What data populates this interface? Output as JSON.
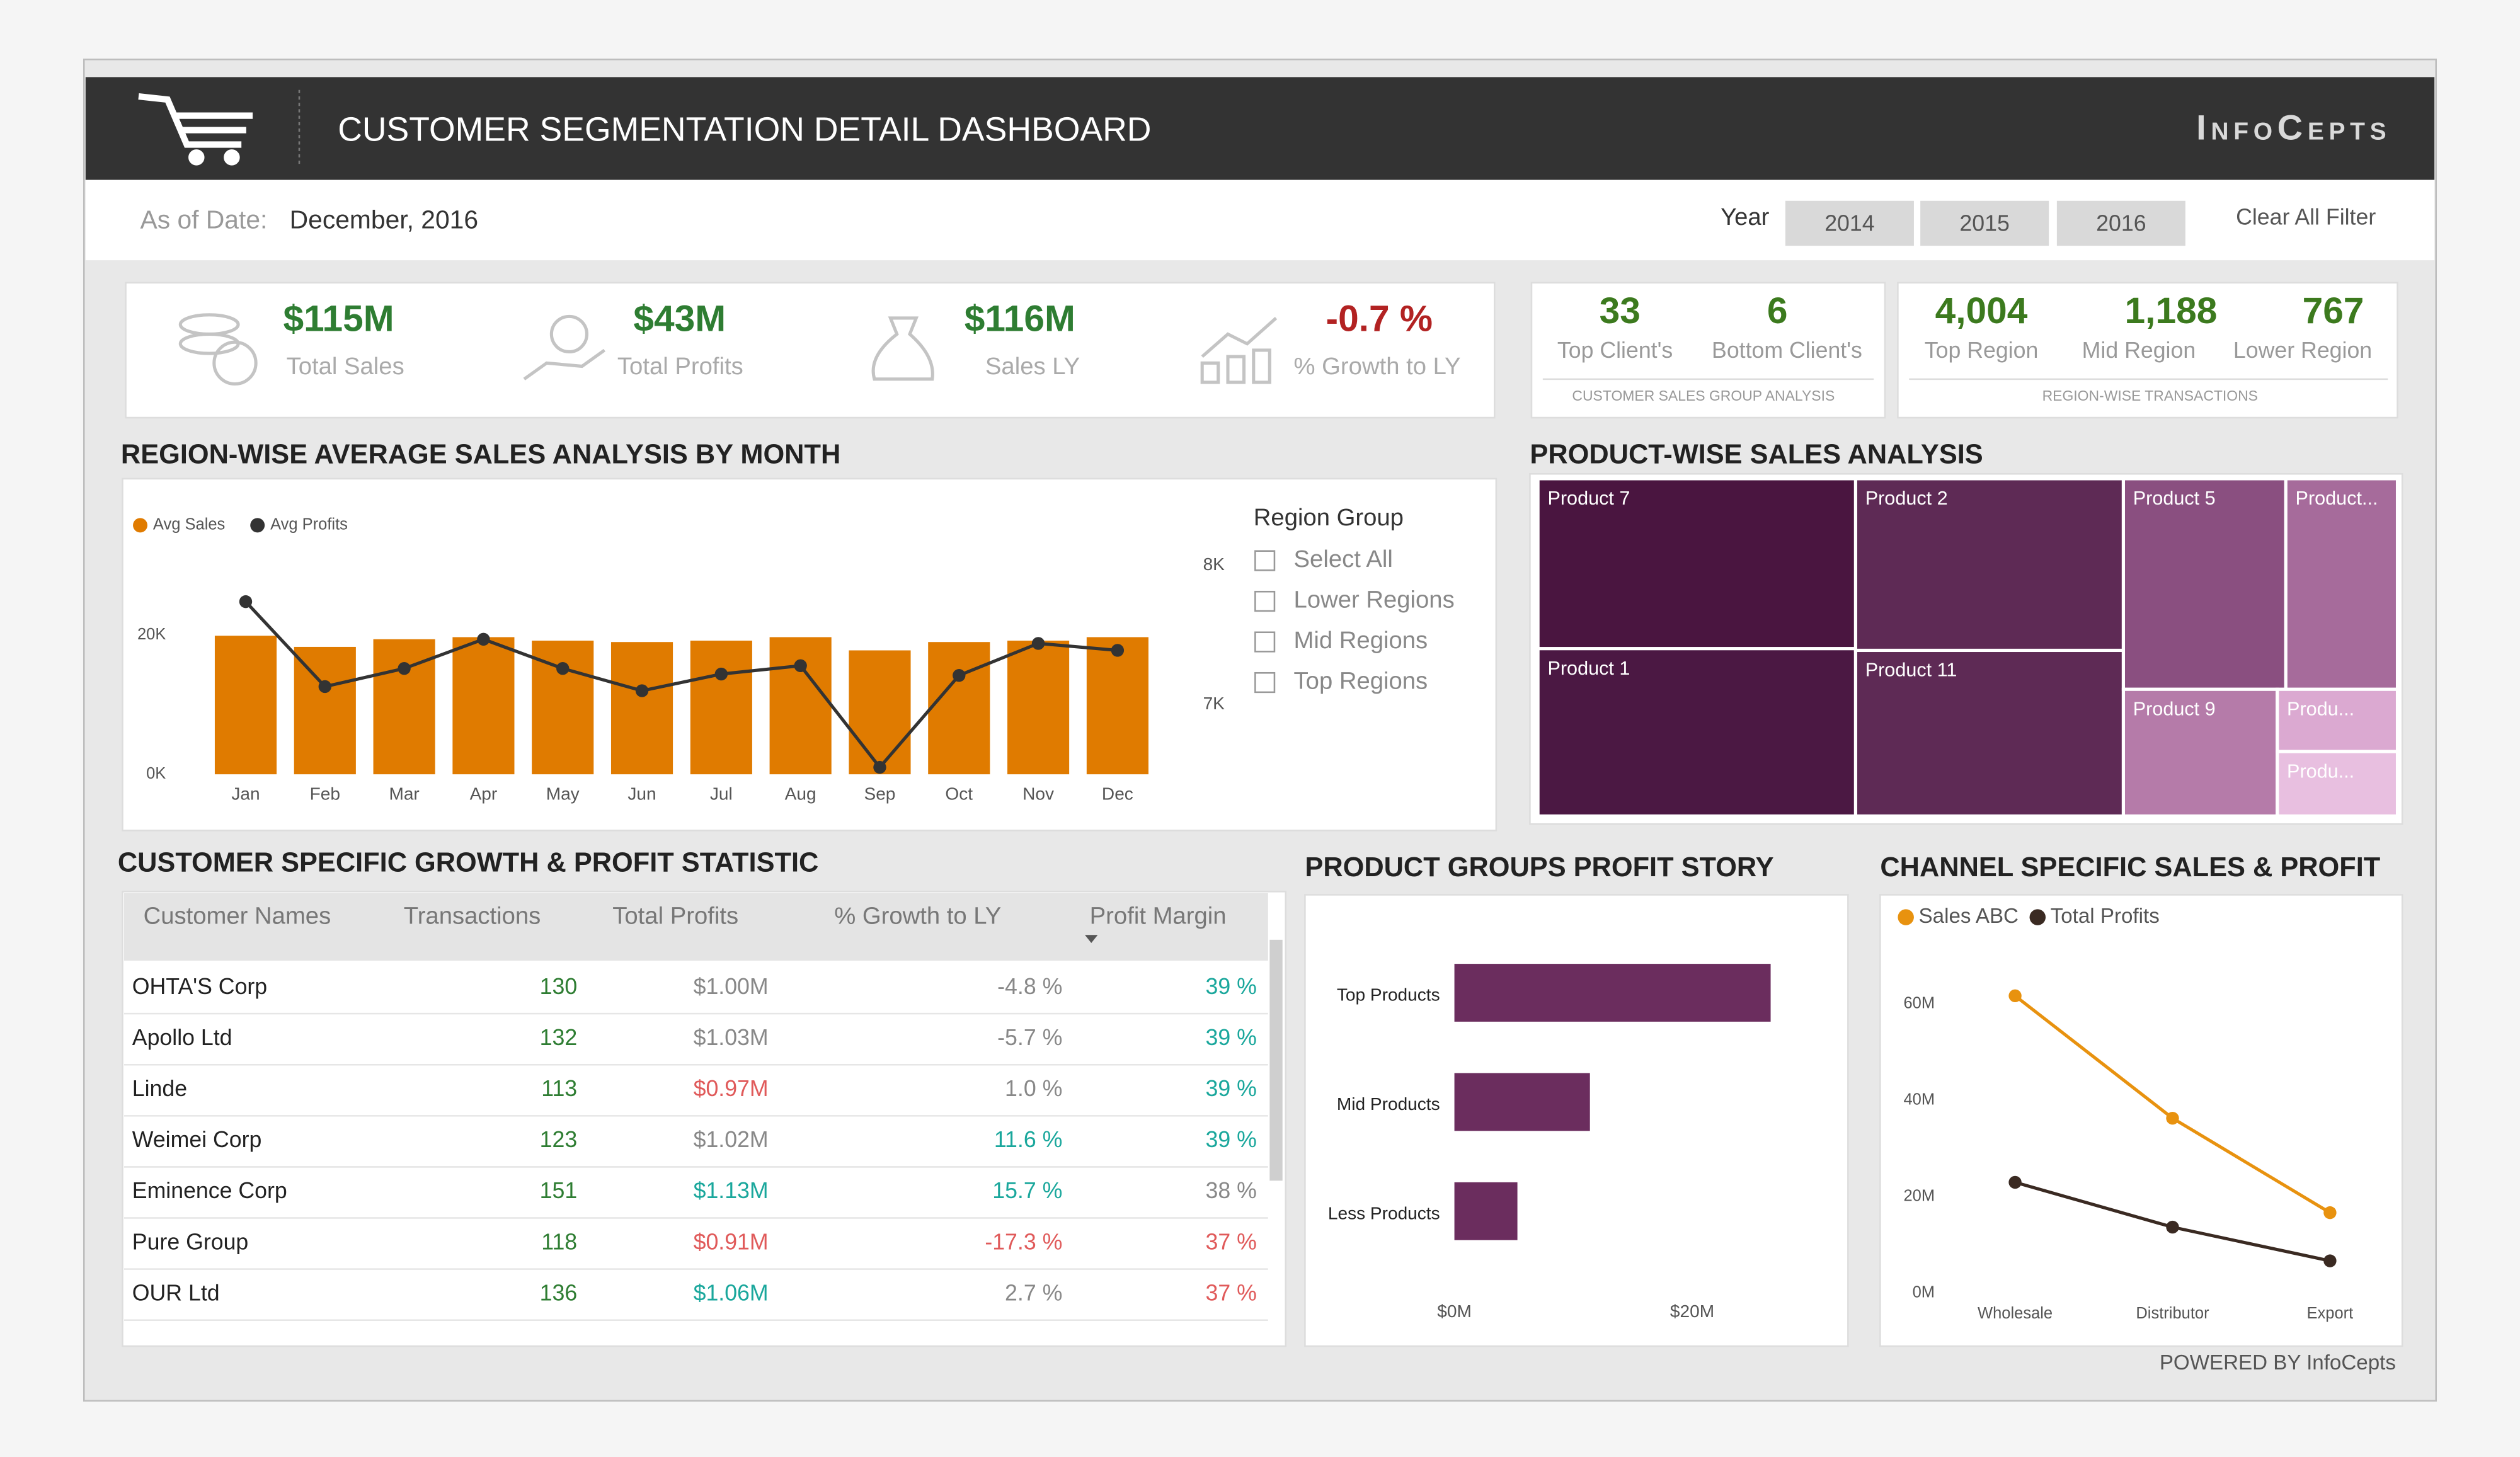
{
  "header": {
    "title": "CUSTOMER SEGMENTATION DETAIL DASHBOARD",
    "brand": "InfoCepts",
    "as_of_label": "As of Date:",
    "as_of_value": "December, 2016",
    "year_label": "Year",
    "years": [
      "2014",
      "2015",
      "2016"
    ],
    "clear_filter": "Clear All Filter"
  },
  "kpis": [
    {
      "value": "$115M",
      "label": "Total Sales"
    },
    {
      "value": "$43M",
      "label": "Total Profits"
    },
    {
      "value": "$116M",
      "label": "Sales LY"
    },
    {
      "value": "-0.7 %",
      "label": "% Growth to LY"
    }
  ],
  "customer_counts": {
    "items": [
      {
        "value": "33",
        "label": "Top Client's"
      },
      {
        "value": "6",
        "label": "Bottom Client's"
      }
    ],
    "caption": "CUSTOMER SALES GROUP ANALYSIS"
  },
  "region_counts": {
    "items": [
      {
        "value": "4,004",
        "label": "Top Region"
      },
      {
        "value": "1,188",
        "label": "Mid Region"
      },
      {
        "value": "767",
        "label": "Lower Region"
      }
    ],
    "caption": "REGION-WISE TRANSACTIONS"
  },
  "slicer": {
    "title": "Region Group",
    "options": [
      "Select All",
      "Lower Regions",
      "Mid Regions",
      "Top Regions"
    ]
  },
  "chart_data": [
    {
      "type": "bar_line",
      "title": "REGION-WISE AVERAGE SALES ANALYSIS BY MONTH",
      "categories": [
        "Jan",
        "Feb",
        "Mar",
        "Apr",
        "May",
        "Jun",
        "Jul",
        "Aug",
        "Sep",
        "Oct",
        "Nov",
        "Dec"
      ],
      "series": [
        {
          "name": "Avg Sales",
          "type": "bar",
          "color": "#e07b00",
          "values": [
            19900,
            18300,
            19400,
            19700,
            19200,
            19000,
            19200,
            19700,
            17800,
            19000,
            19200,
            19700
          ]
        },
        {
          "name": "Avg Profits",
          "type": "line",
          "color": "#333333",
          "axis": "y2",
          "values": [
            7740,
            7130,
            7260,
            7470,
            7260,
            7100,
            7220,
            7280,
            6550,
            7210,
            7440,
            7390
          ]
        }
      ],
      "ylim": [
        0,
        30000
      ],
      "yticks": [
        {
          "value": 0,
          "label": "0K"
        },
        {
          "value": 20000,
          "label": "20K"
        }
      ],
      "y2lim": [
        6500,
        8000
      ],
      "y2ticks": [
        {
          "value": 7000,
          "label": "7K"
        },
        {
          "value": 8000,
          "label": "8K"
        }
      ]
    },
    {
      "type": "treemap",
      "title": "PRODUCT-WISE SALES ANALYSIS",
      "categories": [
        "Product 7",
        "Product 1",
        "Product 2",
        "Product 11",
        "Product 5",
        "Product...",
        "Product 9",
        "Produ...",
        "Produ..."
      ],
      "values": [
        202,
        199,
        172,
        166,
        128,
        88,
        73,
        28,
        29
      ],
      "colors": [
        "#4a1540",
        "#4b1843",
        "#5e2a55",
        "#5e2a55",
        "#8a4f80",
        "#a66b9b",
        "#b57ba9",
        "#dba9d1",
        "#e8bfe0"
      ]
    },
    {
      "type": "hbar",
      "title": "PRODUCT GROUPS PROFIT STORY",
      "categories": [
        "Top Products",
        "Mid Products",
        "Less Products"
      ],
      "values": [
        26600000,
        11400000,
        5300000
      ],
      "color": "#6b2d5e",
      "xlim": [
        0,
        30000000
      ],
      "xticks": [
        {
          "value": 0,
          "label": "$0M"
        },
        {
          "value": 20000000,
          "label": "$20M"
        }
      ]
    },
    {
      "type": "line",
      "title": "CHANNEL SPECIFIC SALES & PROFIT",
      "categories": [
        "Wholesale",
        "Distributor",
        "Export"
      ],
      "series": [
        {
          "name": "Sales ABC",
          "color": "#e8920f",
          "values": [
            61700000,
            36300000,
            16700000
          ]
        },
        {
          "name": "Total Profits",
          "color": "#3a2a22",
          "values": [
            23000000,
            13700000,
            6700000
          ]
        }
      ],
      "ylim": [
        0,
        70000000
      ],
      "yticks": [
        {
          "value": 0,
          "label": "0M"
        },
        {
          "value": 20000000,
          "label": "20M"
        },
        {
          "value": 40000000,
          "label": "40M"
        },
        {
          "value": 60000000,
          "label": "60M"
        }
      ]
    }
  ],
  "table": {
    "title": "CUSTOMER SPECIFIC GROWTH & PROFIT STATISTIC",
    "columns": [
      "Customer Names",
      "Transactions",
      "Total Profits",
      "% Growth to LY",
      "Profit Margin"
    ],
    "rows": [
      [
        "OHTA'S Corp",
        "130",
        "$1.00M",
        "-4.8 %",
        "39 %"
      ],
      [
        "Apollo Ltd",
        "132",
        "$1.03M",
        "-5.7 %",
        "39 %"
      ],
      [
        "Linde",
        "113",
        "$0.97M",
        "1.0 %",
        "39 %"
      ],
      [
        "Weimei Corp",
        "123",
        "$1.02M",
        "11.6 %",
        "39 %"
      ],
      [
        "Eminence Corp",
        "151",
        "$1.13M",
        "15.7 %",
        "38 %"
      ],
      [
        "Pure Group",
        "118",
        "$0.91M",
        "-17.3 %",
        "37 %"
      ],
      [
        "OUR Ltd",
        "136",
        "$1.06M",
        "2.7 %",
        "37 %"
      ]
    ]
  },
  "footer": "POWERED BY InfoCepts"
}
